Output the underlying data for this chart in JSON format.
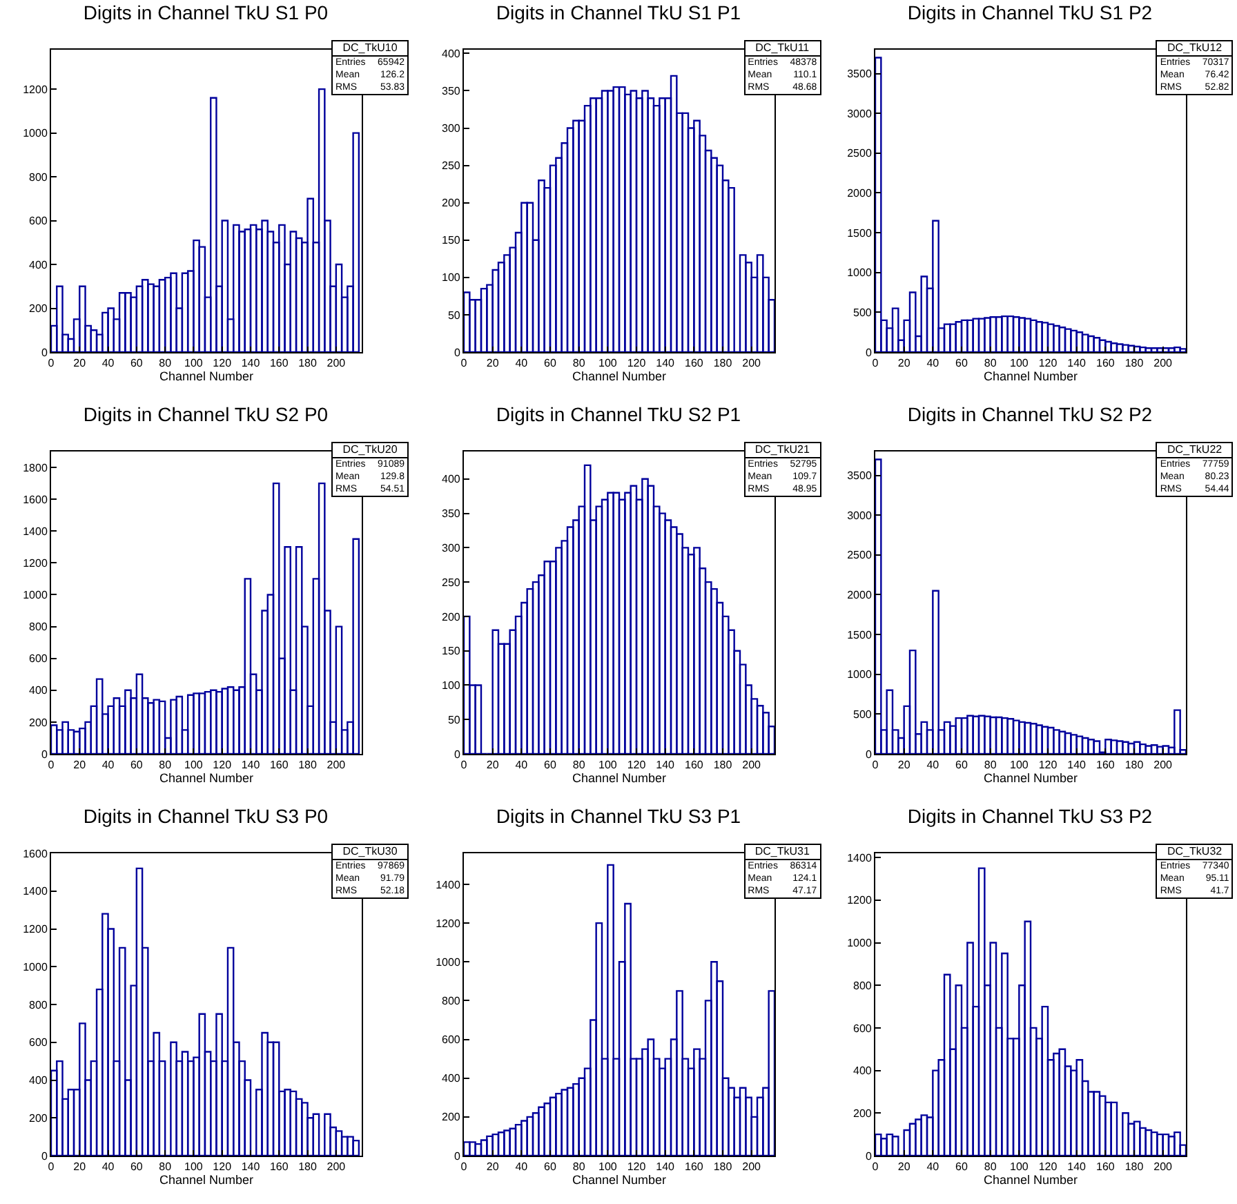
{
  "chart_data": [
    {
      "type": "histogram",
      "title": "Digits in Channel TkU S1 P0",
      "xlabel": "Channel Number",
      "color": "#00009c",
      "xlim": [
        0,
        218
      ],
      "ylim": [
        0,
        1380
      ],
      "xticks": [
        0,
        20,
        40,
        60,
        80,
        100,
        120,
        140,
        160,
        180,
        200
      ],
      "yticks": [
        0,
        200,
        400,
        600,
        800,
        1000,
        1200
      ],
      "annotations": [
        "DC_TkU10",
        "Entries",
        "65942",
        "Mean",
        "126.2",
        "RMS",
        "53.83"
      ],
      "bins": [
        0,
        4,
        8,
        12,
        16,
        20,
        24,
        28,
        32,
        36,
        40,
        44,
        48,
        52,
        56,
        60,
        64,
        68,
        72,
        76,
        80,
        84,
        88,
        92,
        96,
        100,
        104,
        108,
        112,
        116,
        120,
        124,
        128,
        132,
        136,
        140,
        144,
        148,
        152,
        156,
        160,
        164,
        168,
        172,
        176,
        180,
        184,
        188,
        192,
        196,
        200,
        204,
        208,
        212,
        216
      ],
      "values": [
        120,
        300,
        80,
        60,
        150,
        300,
        120,
        100,
        80,
        180,
        200,
        150,
        270,
        270,
        250,
        300,
        330,
        310,
        300,
        330,
        340,
        360,
        200,
        360,
        370,
        510,
        480,
        250,
        1160,
        300,
        600,
        150,
        580,
        550,
        560,
        580,
        560,
        600,
        550,
        500,
        580,
        400,
        550,
        520,
        500,
        700,
        500,
        1200,
        600,
        300,
        400,
        250,
        300,
        1000
      ]
    },
    {
      "type": "histogram",
      "title": "Digits in Channel TkU S1 P1",
      "xlabel": "Channel Number",
      "color": "#00009c",
      "xlim": [
        0,
        216
      ],
      "ylim": [
        0,
        405
      ],
      "xticks": [
        0,
        20,
        40,
        60,
        80,
        100,
        120,
        140,
        160,
        180,
        200
      ],
      "yticks": [
        0,
        50,
        100,
        150,
        200,
        250,
        300,
        350,
        400
      ],
      "annotations": [
        "DC_TkU11",
        "Entries",
        "48378",
        "Mean",
        "110.1",
        "RMS",
        "48.68"
      ],
      "bins": [
        0,
        4,
        8,
        12,
        16,
        20,
        24,
        28,
        32,
        36,
        40,
        44,
        48,
        52,
        56,
        60,
        64,
        68,
        72,
        76,
        80,
        84,
        88,
        92,
        96,
        100,
        104,
        108,
        112,
        116,
        120,
        124,
        128,
        132,
        136,
        140,
        144,
        148,
        152,
        156,
        160,
        164,
        168,
        172,
        176,
        180,
        184,
        188,
        192,
        196,
        200,
        204,
        208,
        212,
        216
      ],
      "values": [
        80,
        70,
        70,
        85,
        90,
        110,
        120,
        130,
        140,
        160,
        200,
        200,
        150,
        230,
        220,
        250,
        260,
        280,
        300,
        310,
        310,
        330,
        340,
        340,
        350,
        350,
        355,
        355,
        345,
        350,
        340,
        350,
        340,
        330,
        340,
        340,
        370,
        320,
        320,
        300,
        310,
        290,
        270,
        260,
        250,
        230,
        220,
        0,
        130,
        120,
        100,
        130,
        100,
        70
      ]
    },
    {
      "type": "histogram",
      "title": "Digits in Channel TkU S1 P2",
      "xlabel": "Channel Number",
      "color": "#00009c",
      "xlim": [
        0,
        216
      ],
      "ylim": [
        0,
        3800
      ],
      "xticks": [
        0,
        20,
        40,
        60,
        80,
        100,
        120,
        140,
        160,
        180,
        200
      ],
      "yticks": [
        0,
        500,
        1000,
        1500,
        2000,
        2500,
        3000,
        3500
      ],
      "annotations": [
        "DC_TkU12",
        "Entries",
        "70317",
        "Mean",
        "76.42",
        "RMS",
        "52.82"
      ],
      "bins": [
        0,
        4,
        8,
        12,
        16,
        20,
        24,
        28,
        32,
        36,
        40,
        44,
        48,
        52,
        56,
        60,
        64,
        68,
        72,
        76,
        80,
        84,
        88,
        92,
        96,
        100,
        104,
        108,
        112,
        116,
        120,
        124,
        128,
        132,
        136,
        140,
        144,
        148,
        152,
        156,
        160,
        164,
        168,
        172,
        176,
        180,
        184,
        188,
        192,
        196,
        200,
        204,
        208,
        212,
        216
      ],
      "values": [
        3700,
        400,
        300,
        550,
        150,
        400,
        750,
        200,
        950,
        800,
        1650,
        300,
        350,
        350,
        380,
        400,
        400,
        420,
        420,
        430,
        440,
        440,
        450,
        450,
        440,
        430,
        420,
        400,
        380,
        370,
        350,
        330,
        310,
        290,
        270,
        250,
        220,
        200,
        180,
        150,
        130,
        110,
        100,
        90,
        80,
        70,
        60,
        50,
        50,
        50,
        50,
        50,
        60,
        40
      ]
    },
    {
      "type": "histogram",
      "title": "Digits in Channel TkU S2 P0",
      "xlabel": "Channel Number",
      "color": "#00009c",
      "xlim": [
        0,
        218
      ],
      "ylim": [
        0,
        1900
      ],
      "xticks": [
        0,
        20,
        40,
        60,
        80,
        100,
        120,
        140,
        160,
        180,
        200
      ],
      "yticks": [
        0,
        200,
        400,
        600,
        800,
        1000,
        1200,
        1400,
        1600,
        1800
      ],
      "annotations": [
        "DC_TkU20",
        "Entries",
        "91089",
        "Mean",
        "129.8",
        "RMS",
        "54.51"
      ],
      "bins": [
        0,
        4,
        8,
        12,
        16,
        20,
        24,
        28,
        32,
        36,
        40,
        44,
        48,
        52,
        56,
        60,
        64,
        68,
        72,
        76,
        80,
        84,
        88,
        92,
        96,
        100,
        104,
        108,
        112,
        116,
        120,
        124,
        128,
        132,
        136,
        140,
        144,
        148,
        152,
        156,
        160,
        164,
        168,
        172,
        176,
        180,
        184,
        188,
        192,
        196,
        200,
        204,
        208,
        212,
        216
      ],
      "values": [
        180,
        150,
        200,
        150,
        140,
        160,
        200,
        300,
        470,
        250,
        300,
        350,
        300,
        400,
        350,
        500,
        350,
        320,
        340,
        330,
        100,
        340,
        360,
        150,
        370,
        380,
        380,
        390,
        400,
        390,
        410,
        420,
        400,
        420,
        1100,
        500,
        400,
        900,
        1000,
        1700,
        600,
        1300,
        400,
        1300,
        800,
        300,
        1100,
        1700,
        900,
        200,
        800,
        150,
        200,
        1350
      ]
    },
    {
      "type": "histogram",
      "title": "Digits in Channel TkU S2 P1",
      "xlabel": "Channel Number",
      "color": "#00009c",
      "xlim": [
        0,
        216
      ],
      "ylim": [
        0,
        440
      ],
      "xticks": [
        0,
        20,
        40,
        60,
        80,
        100,
        120,
        140,
        160,
        180,
        200
      ],
      "yticks": [
        0,
        50,
        100,
        150,
        200,
        250,
        300,
        350,
        400
      ],
      "annotations": [
        "DC_TkU21",
        "Entries",
        "52795",
        "Mean",
        "109.7",
        "RMS",
        "48.95"
      ],
      "bins": [
        0,
        4,
        8,
        12,
        16,
        20,
        24,
        28,
        32,
        36,
        40,
        44,
        48,
        52,
        56,
        60,
        64,
        68,
        72,
        76,
        80,
        84,
        88,
        92,
        96,
        100,
        104,
        108,
        112,
        116,
        120,
        124,
        128,
        132,
        136,
        140,
        144,
        148,
        152,
        156,
        160,
        164,
        168,
        172,
        176,
        180,
        184,
        188,
        192,
        196,
        200,
        204,
        208,
        212,
        216
      ],
      "values": [
        200,
        100,
        100,
        0,
        0,
        180,
        160,
        160,
        180,
        200,
        220,
        240,
        250,
        260,
        280,
        280,
        300,
        310,
        330,
        340,
        360,
        420,
        340,
        360,
        370,
        380,
        380,
        370,
        380,
        390,
        370,
        400,
        390,
        360,
        350,
        340,
        330,
        320,
        300,
        290,
        300,
        270,
        250,
        240,
        220,
        200,
        180,
        150,
        130,
        100,
        80,
        70,
        60,
        40
      ]
    },
    {
      "type": "histogram",
      "title": "Digits in Channel TkU S2 P2",
      "xlabel": "Channel Number",
      "color": "#00009c",
      "xlim": [
        0,
        216
      ],
      "ylim": [
        0,
        3800
      ],
      "xticks": [
        0,
        20,
        40,
        60,
        80,
        100,
        120,
        140,
        160,
        180,
        200
      ],
      "yticks": [
        0,
        500,
        1000,
        1500,
        2000,
        2500,
        3000,
        3500
      ],
      "annotations": [
        "DC_TkU22",
        "Entries",
        "77759",
        "Mean",
        "80.23",
        "RMS",
        "54.44"
      ],
      "bins": [
        0,
        4,
        8,
        12,
        16,
        20,
        24,
        28,
        32,
        36,
        40,
        44,
        48,
        52,
        56,
        60,
        64,
        68,
        72,
        76,
        80,
        84,
        88,
        92,
        96,
        100,
        104,
        108,
        112,
        116,
        120,
        124,
        128,
        132,
        136,
        140,
        144,
        148,
        152,
        156,
        160,
        164,
        168,
        172,
        176,
        180,
        184,
        188,
        192,
        196,
        200,
        204,
        208,
        212,
        216
      ],
      "values": [
        3700,
        300,
        800,
        300,
        200,
        600,
        1300,
        250,
        400,
        300,
        2050,
        300,
        400,
        350,
        450,
        450,
        480,
        470,
        480,
        470,
        460,
        460,
        450,
        440,
        420,
        400,
        390,
        380,
        360,
        340,
        330,
        300,
        280,
        260,
        240,
        220,
        200,
        180,
        160,
        20,
        180,
        170,
        160,
        150,
        130,
        150,
        120,
        100,
        110,
        90,
        100,
        80,
        550,
        50
      ]
    },
    {
      "type": "histogram",
      "title": "Digits in Channel TkU S3 P0",
      "xlabel": "Channel Number",
      "color": "#00009c",
      "xlim": [
        0,
        218
      ],
      "ylim": [
        0,
        1600
      ],
      "xticks": [
        0,
        20,
        40,
        60,
        80,
        100,
        120,
        140,
        160,
        180,
        200
      ],
      "yticks": [
        0,
        200,
        400,
        600,
        800,
        1000,
        1200,
        1400,
        1600
      ],
      "annotations": [
        "DC_TkU30",
        "Entries",
        "97869",
        "Mean",
        "91.79",
        "RMS",
        "52.18"
      ],
      "bins": [
        0,
        4,
        8,
        12,
        16,
        20,
        24,
        28,
        32,
        36,
        40,
        44,
        48,
        52,
        56,
        60,
        64,
        68,
        72,
        76,
        80,
        84,
        88,
        92,
        96,
        100,
        104,
        108,
        112,
        116,
        120,
        124,
        128,
        132,
        136,
        140,
        144,
        148,
        152,
        156,
        160,
        164,
        168,
        172,
        176,
        180,
        184,
        188,
        192,
        196,
        200,
        204,
        208,
        212,
        216
      ],
      "values": [
        450,
        500,
        300,
        350,
        350,
        700,
        400,
        500,
        880,
        1280,
        1200,
        500,
        1100,
        400,
        900,
        1520,
        1100,
        500,
        650,
        500,
        0,
        600,
        500,
        550,
        500,
        520,
        750,
        550,
        500,
        750,
        500,
        1100,
        600,
        500,
        400,
        0,
        350,
        650,
        600,
        600,
        340,
        350,
        340,
        300,
        280,
        200,
        220,
        0,
        220,
        150,
        130,
        100,
        100,
        80
      ]
    },
    {
      "type": "histogram",
      "title": "Digits in Channel TkU S3 P1",
      "xlabel": "Channel Number",
      "color": "#00009c",
      "xlim": [
        0,
        216
      ],
      "ylim": [
        0,
        1560
      ],
      "xticks": [
        0,
        20,
        40,
        60,
        80,
        100,
        120,
        140,
        160,
        180,
        200
      ],
      "yticks": [
        0,
        200,
        400,
        600,
        800,
        1000,
        1200,
        1400
      ],
      "annotations": [
        "DC_TkU31",
        "Entries",
        "86314",
        "Mean",
        "124.1",
        "RMS",
        "47.17"
      ],
      "bins": [
        0,
        4,
        8,
        12,
        16,
        20,
        24,
        28,
        32,
        36,
        40,
        44,
        48,
        52,
        56,
        60,
        64,
        68,
        72,
        76,
        80,
        84,
        88,
        92,
        96,
        100,
        104,
        108,
        112,
        116,
        120,
        124,
        128,
        132,
        136,
        140,
        144,
        148,
        152,
        156,
        160,
        164,
        168,
        172,
        176,
        180,
        184,
        188,
        192,
        196,
        200,
        204,
        208,
        212,
        216
      ],
      "values": [
        70,
        70,
        60,
        80,
        100,
        110,
        120,
        130,
        140,
        160,
        180,
        200,
        220,
        250,
        270,
        300,
        320,
        340,
        350,
        370,
        400,
        450,
        700,
        1200,
        500,
        1500,
        500,
        1000,
        1300,
        500,
        500,
        550,
        600,
        500,
        450,
        500,
        600,
        850,
        500,
        450,
        550,
        500,
        800,
        1000,
        900,
        400,
        350,
        300,
        350,
        300,
        200,
        300,
        350,
        850
      ]
    },
    {
      "type": "histogram",
      "title": "Digits in Channel TkU S3 P2",
      "xlabel": "Channel Number",
      "color": "#00009c",
      "xlim": [
        0,
        216
      ],
      "ylim": [
        0,
        1420
      ],
      "xticks": [
        0,
        20,
        40,
        60,
        80,
        100,
        120,
        140,
        160,
        180,
        200
      ],
      "yticks": [
        0,
        200,
        400,
        600,
        800,
        1000,
        1200,
        1400
      ],
      "annotations": [
        "DC_TkU32",
        "Entries",
        "77340",
        "Mean",
        "95.11",
        "RMS",
        "41.7"
      ],
      "bins": [
        0,
        4,
        8,
        12,
        16,
        20,
        24,
        28,
        32,
        36,
        40,
        44,
        48,
        52,
        56,
        60,
        64,
        68,
        72,
        76,
        80,
        84,
        88,
        92,
        96,
        100,
        104,
        108,
        112,
        116,
        120,
        124,
        128,
        132,
        136,
        140,
        144,
        148,
        152,
        156,
        160,
        164,
        168,
        172,
        176,
        180,
        184,
        188,
        192,
        196,
        200,
        204,
        208,
        212,
        216
      ],
      "values": [
        100,
        80,
        100,
        90,
        0,
        120,
        150,
        170,
        190,
        180,
        400,
        450,
        850,
        500,
        800,
        600,
        1000,
        700,
        1350,
        800,
        1000,
        600,
        950,
        550,
        550,
        800,
        1100,
        600,
        550,
        700,
        450,
        480,
        500,
        420,
        400,
        450,
        350,
        300,
        300,
        280,
        250,
        250,
        0,
        200,
        150,
        160,
        130,
        120,
        110,
        100,
        100,
        90,
        110,
        50
      ]
    }
  ]
}
